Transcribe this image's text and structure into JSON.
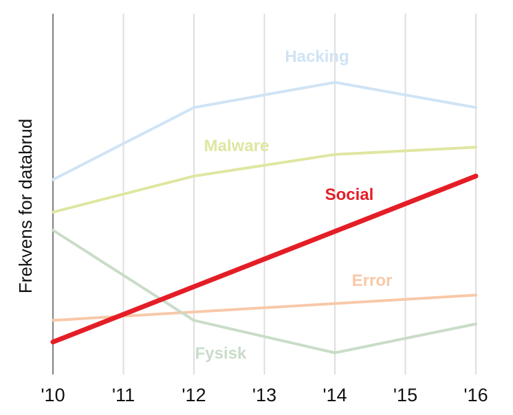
{
  "chart_data": {
    "type": "line",
    "title": "",
    "xlabel": "",
    "ylabel": "Frekvens for databrud",
    "categories": [
      "'10",
      "'11",
      "'12",
      "'13",
      "'14",
      "'15",
      "'16"
    ],
    "x": [
      2010,
      2011,
      2012,
      2013,
      2014,
      2015,
      2016
    ],
    "ylim": [
      0,
      100
    ],
    "y_ticks_shown": false,
    "grid": "vertical",
    "legend": "inline labels",
    "series": [
      {
        "name": "Hacking",
        "color": "#cfe4f5",
        "x": [
          2010,
          2012,
          2014,
          2016
        ],
        "values": [
          54,
          74,
          81,
          74
        ]
      },
      {
        "name": "Malware",
        "color": "#dfe6a0",
        "x": [
          2010,
          2012,
          2014,
          2016
        ],
        "values": [
          45,
          55,
          61,
          63
        ]
      },
      {
        "name": "Social",
        "color": "#e41e26",
        "x": [
          2010,
          2016
        ],
        "values": [
          9,
          55
        ]
      },
      {
        "name": "Error",
        "color": "#f8c8a8",
        "x": [
          2010,
          2016
        ],
        "values": [
          15,
          22
        ]
      },
      {
        "name": "Fysisk",
        "color": "#c9dcc8",
        "x": [
          2010,
          2012,
          2014,
          2016
        ],
        "values": [
          40,
          15,
          6,
          14
        ]
      }
    ]
  }
}
